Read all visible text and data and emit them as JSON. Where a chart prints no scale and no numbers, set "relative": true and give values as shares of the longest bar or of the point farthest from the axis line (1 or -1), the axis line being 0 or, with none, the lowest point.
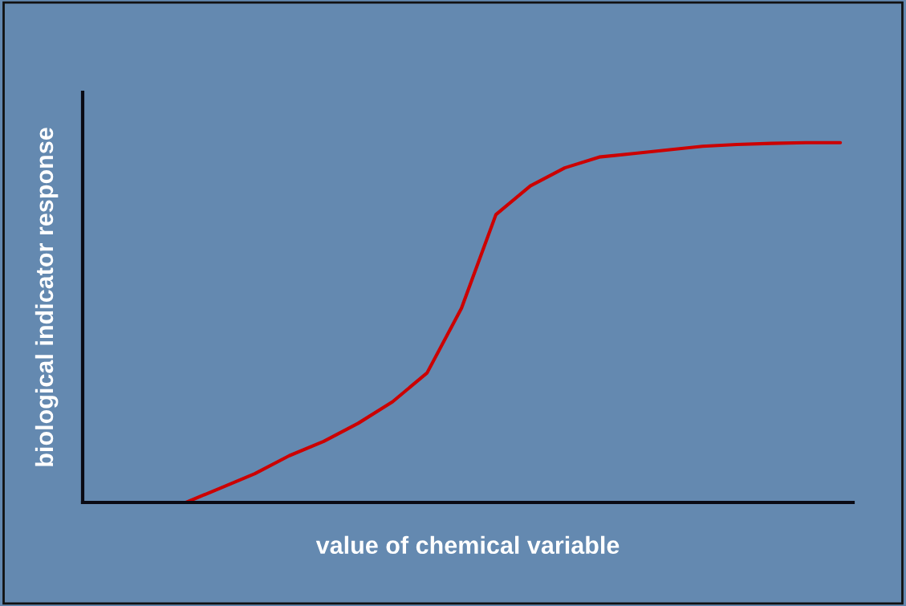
{
  "chart_data": {
    "type": "line",
    "relative": true,
    "xlabel": "value of chemical variable",
    "ylabel": "biological indicator response",
    "categories": [
      null,
      null,
      null,
      null,
      null,
      null,
      null,
      null,
      null,
      null,
      null,
      null,
      null,
      null,
      null,
      null,
      null,
      null,
      null,
      null
    ],
    "series": [
      {
        "color": "#cc0000",
        "values": [
          0,
          0.04,
          0.08,
          0.13,
          0.17,
          0.22,
          0.28,
          0.36,
          0.54,
          0.8,
          0.88,
          0.93,
          0.96,
          0.97,
          0.98,
          0.99,
          0.995,
          0.998,
          1,
          1
        ]
      }
    ],
    "grid": false,
    "legend": false,
    "marker": "none",
    "line_style": "solid",
    "tick_labels": false
  }
}
